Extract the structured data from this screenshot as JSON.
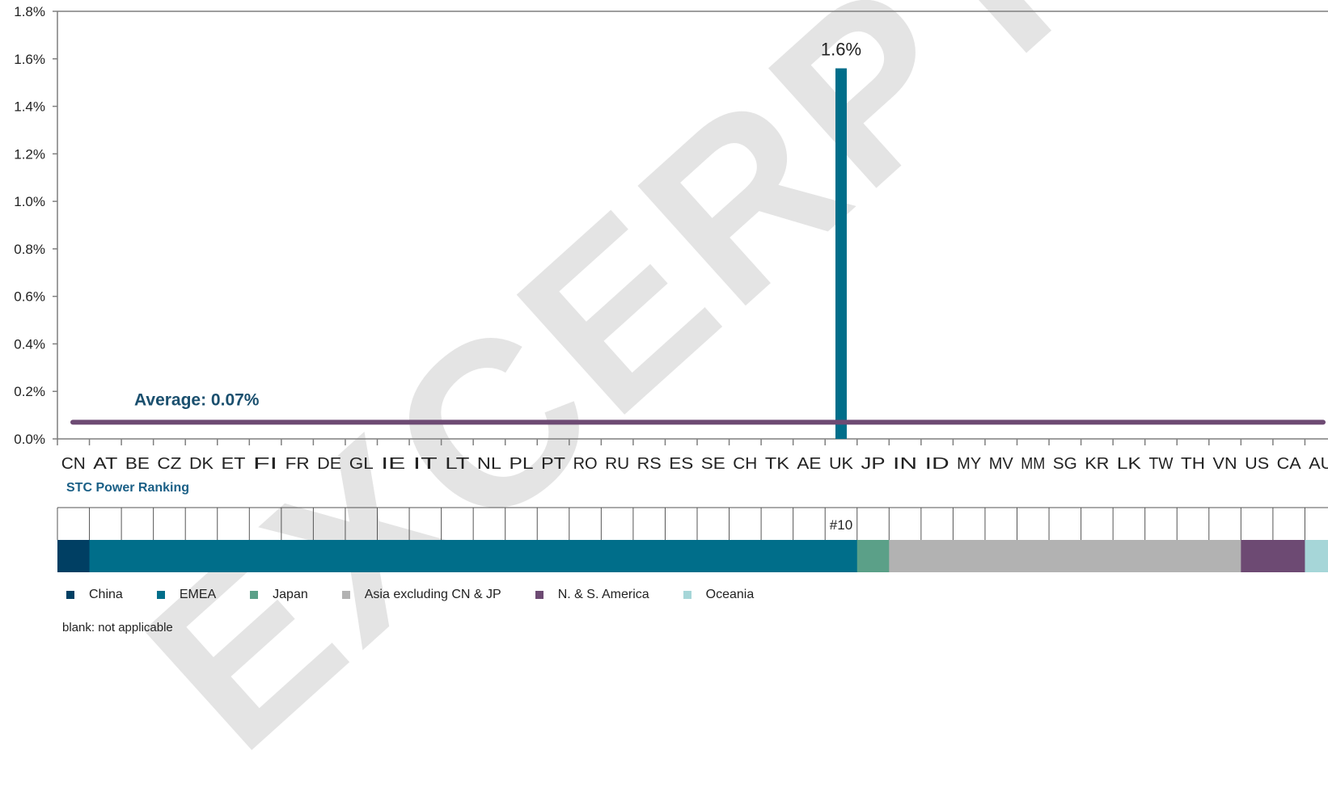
{
  "chart_data": {
    "type": "bar",
    "categories": [
      "CN",
      "AT",
      "BE",
      "CZ",
      "DK",
      "ET",
      "FI",
      "FR",
      "DE",
      "GL",
      "IE",
      "IT",
      "LT",
      "NL",
      "PL",
      "PT",
      "RO",
      "RU",
      "RS",
      "ES",
      "SE",
      "CH",
      "TK",
      "AE",
      "UK",
      "JP",
      "IN",
      "ID",
      "MY",
      "MV",
      "MM",
      "SG",
      "KR",
      "LK",
      "TW",
      "TH",
      "VN",
      "US",
      "CA",
      "AU"
    ],
    "values": [
      0,
      0,
      0,
      0,
      0,
      0,
      0,
      0,
      0,
      0,
      0,
      0,
      0,
      0,
      0,
      0,
      0,
      0,
      0,
      0,
      0,
      0,
      0,
      0,
      1.56,
      0,
      0,
      0,
      0,
      0,
      0,
      0,
      0,
      0,
      0,
      0,
      0,
      0,
      0,
      0
    ],
    "ylim": [
      0,
      1.8
    ],
    "yticks": [
      "0.0%",
      "0.2%",
      "0.4%",
      "0.6%",
      "0.8%",
      "1.0%",
      "1.2%",
      "1.4%",
      "1.6%",
      "1.8%"
    ],
    "bar_color": "#006e8a",
    "data_labels": [
      {
        "category": "UK",
        "text": "1.6%"
      }
    ],
    "average": {
      "value": 0.07,
      "label": "Average: 0.07%",
      "color": "#6d4a73"
    },
    "ranking": {
      "title": "STC Power Ranking",
      "labels": [
        {
          "category": "UK",
          "text": "#10"
        }
      ],
      "regions": [
        {
          "name": "China",
          "color": "#003f63",
          "start": 0,
          "end": 1
        },
        {
          "name": "EMEA",
          "color": "#006e8a",
          "start": 1,
          "end": 25
        },
        {
          "name": "Japan",
          "color": "#5ba088",
          "start": 25,
          "end": 26
        },
        {
          "name": "Asia excluding CN & JP",
          "color": "#b2b2b2",
          "start": 26,
          "end": 37
        },
        {
          "name": "N. & S. America",
          "color": "#6d4a73",
          "start": 37,
          "end": 39
        },
        {
          "name": "Oceania",
          "color": "#a6d6d8",
          "start": 39,
          "end": 40
        }
      ]
    },
    "legend": [
      "China",
      "EMEA",
      "Japan",
      "Asia excluding CN & JP",
      "N. & S. America",
      "Oceania"
    ],
    "note": "blank: not applicable",
    "watermark": "EXCERPT"
  }
}
